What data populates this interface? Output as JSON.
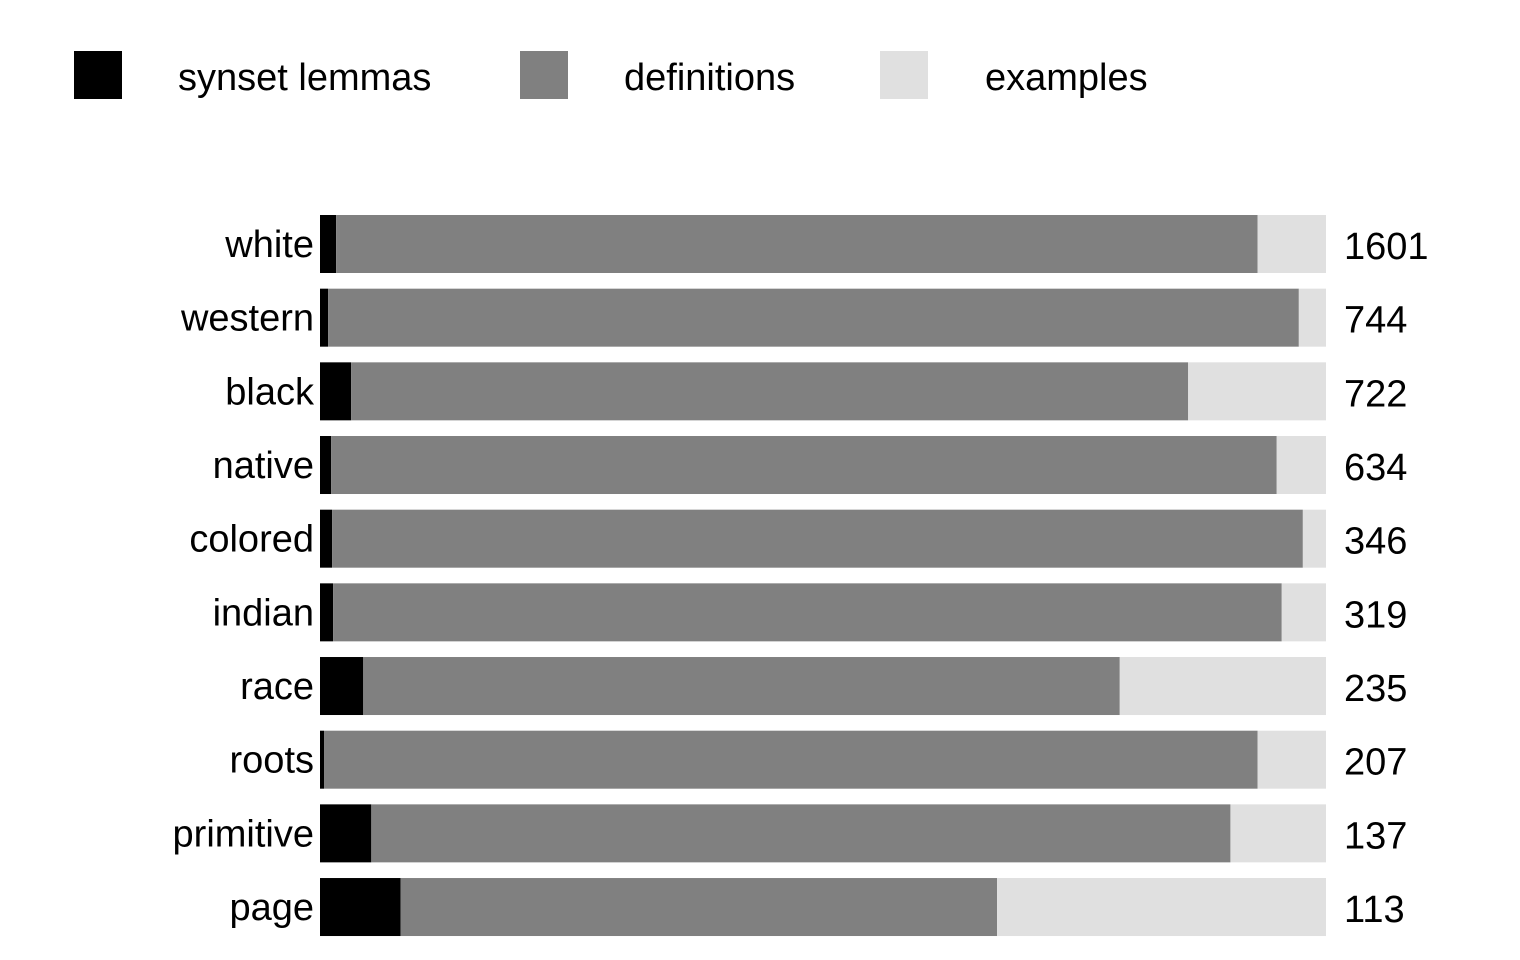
{
  "chart_data": {
    "type": "bar",
    "orientation": "horizontal",
    "stacked": "percent",
    "title": "",
    "xlabel": "",
    "ylabel": "",
    "legend": {
      "placement": "top-left",
      "entries": [
        {
          "name": "synset lemmas",
          "color": "#000000"
        },
        {
          "name": "definitions",
          "color": "#808080"
        },
        {
          "name": "examples",
          "color": "#e0e0e0"
        }
      ]
    },
    "categories": [
      "white",
      "western",
      "black",
      "native",
      "colored",
      "indian",
      "race",
      "roots",
      "primitive",
      "page"
    ],
    "totals": [
      "1601",
      "744",
      "722",
      "634",
      "346",
      "319",
      "235",
      "207",
      "137",
      "113"
    ],
    "series": [
      {
        "name": "synset lemmas",
        "color": "#000000",
        "values": [
          1.6,
          0.8,
          3.1,
          1.1,
          1.2,
          1.3,
          4.3,
          0.4,
          5.1,
          8.0
        ]
      },
      {
        "name": "definitions",
        "color": "#808080",
        "values": [
          91.6,
          96.5,
          83.2,
          94.0,
          96.5,
          94.3,
          75.2,
          92.8,
          85.4,
          59.3
        ]
      },
      {
        "name": "examples",
        "color": "#e0e0e0",
        "values": [
          6.8,
          2.7,
          13.7,
          4.9,
          2.3,
          4.4,
          20.5,
          6.8,
          9.5,
          32.7
        ]
      }
    ],
    "xlim": [
      0,
      100
    ],
    "grid": false
  }
}
